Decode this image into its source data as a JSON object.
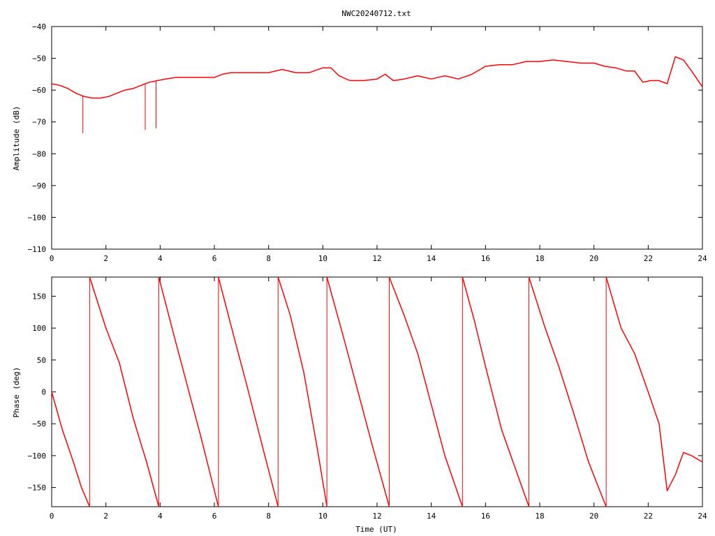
{
  "chart_data": [
    {
      "type": "line",
      "title": "NWC20240712.txt",
      "xlabel": "",
      "ylabel": "Amplitude (dB)",
      "xlim": [
        0,
        24
      ],
      "ylim": [
        -110,
        -40
      ],
      "xticks": [
        0,
        2,
        4,
        6,
        8,
        10,
        12,
        14,
        16,
        18,
        20,
        22,
        24
      ],
      "yticks": [
        -110,
        -100,
        -90,
        -80,
        -70,
        -60,
        -50,
        -40
      ],
      "color": "#ff0000",
      "series": [
        {
          "x": [
            0,
            0.3,
            0.6,
            0.9,
            1.2,
            1.5,
            1.8,
            2.1,
            2.4,
            2.7,
            3.0,
            3.3,
            3.6,
            3.9,
            4.2,
            4.6,
            5.0,
            5.5,
            6.0,
            6.3,
            6.6,
            7.0,
            7.5,
            8.0,
            8.5,
            9.0,
            9.5,
            10.0,
            10.3,
            10.6,
            11.0,
            11.5,
            12.0,
            12.3,
            12.6,
            13.0,
            13.5,
            14.0,
            14.5,
            15.0,
            15.5,
            16.0,
            16.5,
            17.0,
            17.5,
            18.0,
            18.5,
            19.0,
            19.5,
            20.0,
            20.4,
            20.8,
            21.2,
            21.5,
            21.8,
            22.1,
            22.4,
            22.7,
            23.0,
            23.3,
            23.6,
            24.0
          ],
          "y": [
            -58,
            -58.5,
            -59.5,
            -61,
            -62,
            -62.5,
            -62.5,
            -62,
            -61,
            -60,
            -59.5,
            -58.5,
            -57.5,
            -57,
            -56.5,
            -56,
            -56,
            -56,
            -56,
            -55,
            -54.5,
            -54.5,
            -54.5,
            -54.5,
            -53.5,
            -54.5,
            -54.5,
            -53,
            -53,
            -55.5,
            -57,
            -57,
            -56.5,
            -55,
            -57,
            -56.5,
            -55.5,
            -56.5,
            -55.5,
            -56.5,
            -55,
            -52.5,
            -52,
            -52,
            -51,
            -51,
            -50.5,
            -51,
            -51.5,
            -51.5,
            -52.5,
            -53,
            -54,
            -54,
            -57.5,
            -57,
            -57,
            -58,
            -49.5,
            -50.5,
            -54,
            -59
          ]
        }
      ],
      "spikes": [
        {
          "x": 1.15,
          "y": -73.5
        },
        {
          "x": 3.45,
          "y": -72.5
        },
        {
          "x": 3.85,
          "y": -72
        }
      ]
    },
    {
      "type": "line",
      "title": "",
      "xlabel": "Time (UT)",
      "ylabel": "Phase (deg)",
      "xlim": [
        0,
        24
      ],
      "ylim": [
        -180,
        180
      ],
      "xticks": [
        0,
        2,
        4,
        6,
        8,
        10,
        12,
        14,
        16,
        18,
        20,
        22,
        24
      ],
      "yticks": [
        -150,
        -100,
        -50,
        0,
        50,
        100,
        150
      ],
      "color": "#ff0000",
      "segments": [
        {
          "x": [
            0,
            0.4,
            0.8,
            1.1,
            1.4
          ],
          "y": [
            0,
            -60,
            -110,
            -150,
            -180
          ]
        },
        {
          "x": [
            1.4,
            2.0,
            2.5,
            3.0,
            3.5,
            3.95
          ],
          "y": [
            180,
            100,
            45,
            -40,
            -110,
            -180
          ]
        },
        {
          "x": [
            3.95,
            4.5,
            5.0,
            5.5,
            6.15
          ],
          "y": [
            180,
            90,
            10,
            -70,
            -180
          ]
        },
        {
          "x": [
            6.15,
            6.7,
            7.2,
            7.8,
            8.35
          ],
          "y": [
            180,
            90,
            10,
            -90,
            -180
          ]
        },
        {
          "x": [
            8.35,
            8.8,
            9.3,
            9.8,
            10.15
          ],
          "y": [
            180,
            120,
            30,
            -90,
            -180
          ]
        },
        {
          "x": [
            10.15,
            10.8,
            11.3,
            11.8,
            12.45
          ],
          "y": [
            180,
            80,
            0,
            -80,
            -180
          ]
        },
        {
          "x": [
            12.45,
            13.0,
            13.5,
            14.0,
            14.5,
            15.15
          ],
          "y": [
            180,
            120,
            60,
            -20,
            -100,
            -180
          ]
        },
        {
          "x": [
            15.15,
            15.6,
            16.0,
            16.6,
            17.1,
            17.6
          ],
          "y": [
            180,
            110,
            40,
            -60,
            -120,
            -180
          ]
        },
        {
          "x": [
            17.6,
            18.2,
            18.7,
            19.3,
            19.8,
            20.45
          ],
          "y": [
            180,
            100,
            40,
            -40,
            -110,
            -180
          ]
        },
        {
          "x": [
            20.45,
            21.0,
            21.5,
            22.0,
            22.4,
            22.7,
            23.0,
            23.3,
            23.6,
            24.0
          ],
          "y": [
            180,
            100,
            60,
            0,
            -50,
            -155,
            -130,
            -95,
            -100,
            -110
          ]
        }
      ],
      "wraps": [
        1.4,
        3.95,
        6.15,
        8.35,
        10.15,
        12.45,
        15.15,
        17.6,
        20.45
      ]
    }
  ]
}
